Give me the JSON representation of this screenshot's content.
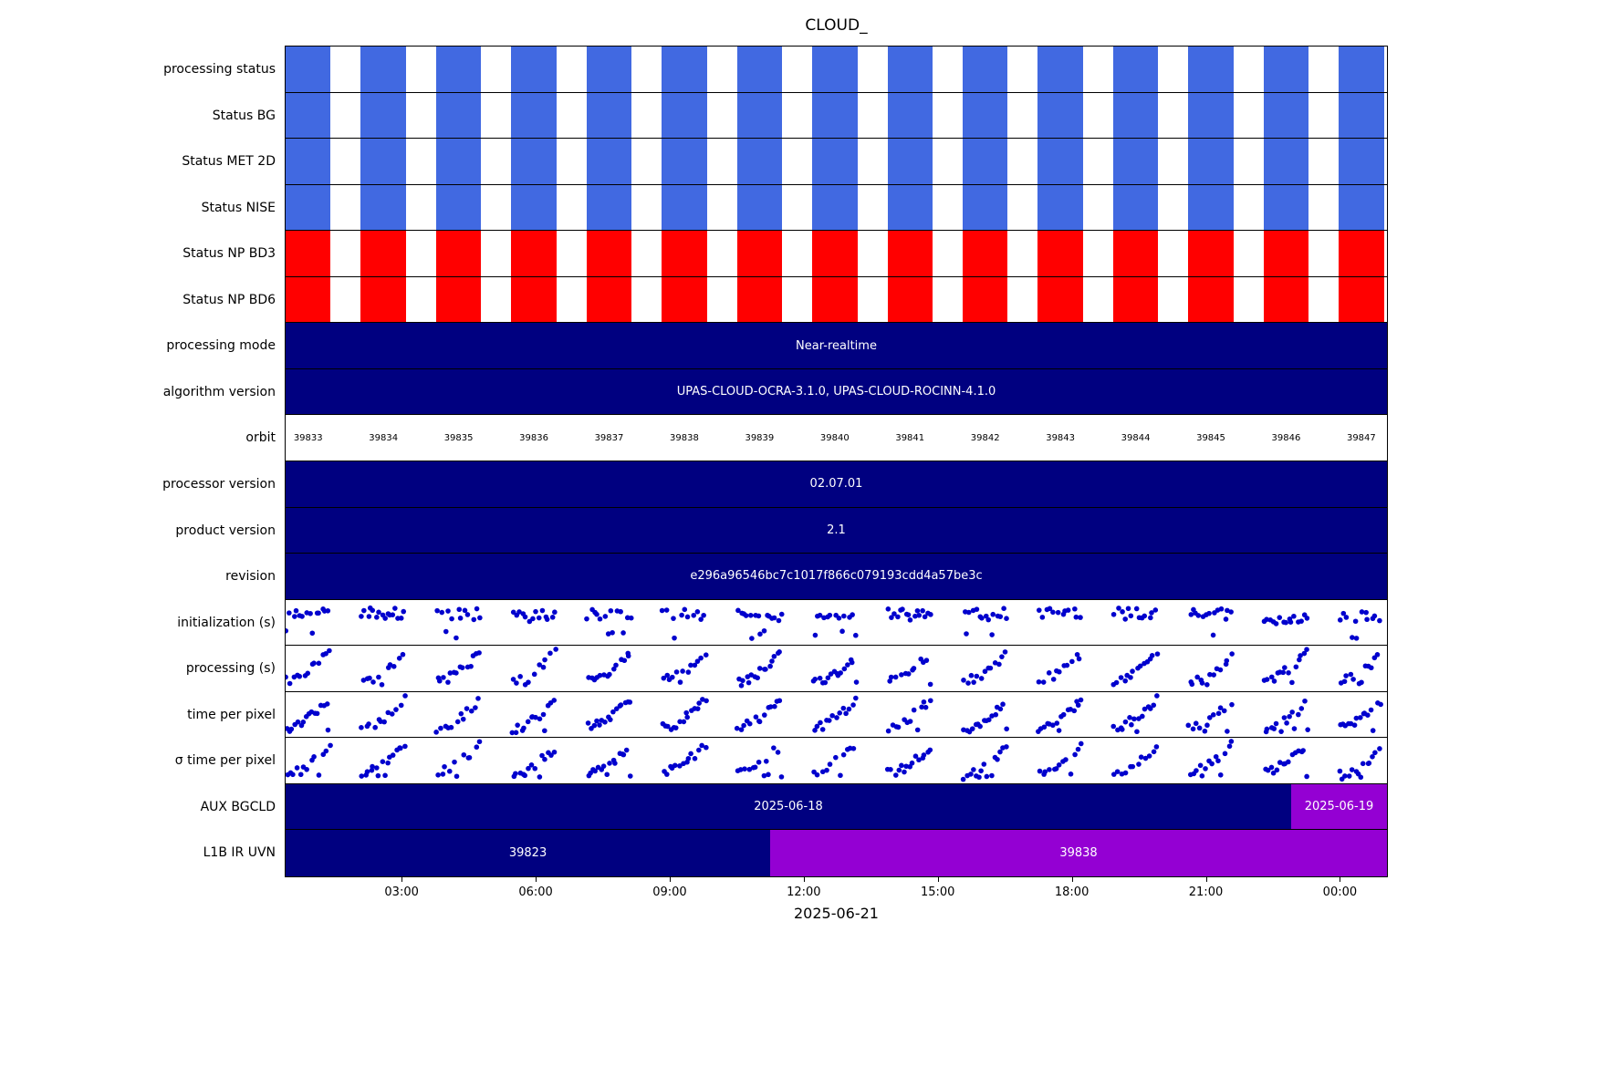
{
  "chart_data": {
    "type": "timeline",
    "title": "CLOUD_",
    "xlabel": "2025-06-21",
    "legend_position": "none",
    "grid": false,
    "colors": {
      "blue_stripe": "#4169e1",
      "red_stripe": "#ff0000",
      "navy": "#000080",
      "purple": "#9400d3",
      "dot": "#0000cd"
    },
    "xticks": [
      {
        "label": "03:00",
        "pos": 10.6
      },
      {
        "label": "06:00",
        "pos": 22.75
      },
      {
        "label": "09:00",
        "pos": 34.9
      },
      {
        "label": "12:00",
        "pos": 47.05
      },
      {
        "label": "15:00",
        "pos": 59.2
      },
      {
        "label": "18:00",
        "pos": 71.35
      },
      {
        "label": "21:00",
        "pos": 83.5
      },
      {
        "label": "00:00",
        "pos": 95.65
      }
    ],
    "orbits": [
      "39833",
      "39834",
      "39835",
      "39836",
      "39837",
      "39838",
      "39839",
      "39840",
      "39841",
      "39842",
      "39843",
      "39844",
      "39845",
      "39846",
      "39847"
    ],
    "stripes": {
      "count": 15,
      "period_pct": 6.83,
      "duty": 0.6
    },
    "rows": [
      {
        "label": "processing status",
        "type": "stripes",
        "color_key": "blue_stripe"
      },
      {
        "label": "Status BG",
        "type": "stripes",
        "color_key": "blue_stripe"
      },
      {
        "label": "Status MET 2D",
        "type": "stripes",
        "color_key": "blue_stripe"
      },
      {
        "label": "Status NISE",
        "type": "stripes",
        "color_key": "blue_stripe"
      },
      {
        "label": "Status NP BD3",
        "type": "stripes",
        "color_key": "red_stripe"
      },
      {
        "label": "Status NP BD6",
        "type": "stripes",
        "color_key": "red_stripe"
      },
      {
        "label": "processing mode",
        "type": "bar",
        "segments": [
          {
            "text": "Near-realtime",
            "color_key": "navy",
            "start": 0,
            "end": 100
          }
        ]
      },
      {
        "label": "algorithm version",
        "type": "bar",
        "segments": [
          {
            "text": "UPAS-CLOUD-OCRA-3.1.0, UPAS-CLOUD-ROCINN-4.1.0",
            "color_key": "navy",
            "start": 0,
            "end": 100
          }
        ]
      },
      {
        "label": "orbit",
        "type": "orbit-labels"
      },
      {
        "label": "processor version",
        "type": "bar",
        "segments": [
          {
            "text": "02.07.01",
            "color_key": "navy",
            "start": 0,
            "end": 100
          }
        ]
      },
      {
        "label": "product version",
        "type": "bar",
        "segments": [
          {
            "text": "2.1",
            "color_key": "navy",
            "start": 0,
            "end": 100
          }
        ]
      },
      {
        "label": "revision",
        "type": "bar",
        "segments": [
          {
            "text": "e296a96546bc7c1017f866c079193cdd4a57be3c",
            "color_key": "navy",
            "start": 0,
            "end": 100
          }
        ]
      },
      {
        "label": "initialization (s)",
        "type": "scatter",
        "pattern": "band",
        "seed": 13,
        "points_per_orbit_min": 11,
        "points_per_orbit_max": 16,
        "note": "per-orbit clusters of timing samples, no y-axis scale shown"
      },
      {
        "label": "processing (s)",
        "type": "scatter",
        "pattern": "ramp",
        "seed": 27,
        "points_per_orbit_min": 11,
        "points_per_orbit_max": 16,
        "note": "values rise within each orbit cluster"
      },
      {
        "label": "time per pixel",
        "type": "scatter",
        "pattern": "ramp",
        "seed": 41,
        "points_per_orbit_min": 11,
        "points_per_orbit_max": 16,
        "note": "values rise within each orbit cluster"
      },
      {
        "label": "σ time per pixel",
        "type": "scatter",
        "pattern": "ramp",
        "seed": 55,
        "points_per_orbit_min": 11,
        "points_per_orbit_max": 16,
        "note": "values rise within each orbit cluster"
      },
      {
        "label": "AUX BGCLD",
        "type": "bar",
        "segments": [
          {
            "text": "2025-06-18",
            "color_key": "navy",
            "start": 0,
            "end": 91.3
          },
          {
            "text": "2025-06-19",
            "color_key": "purple",
            "start": 91.3,
            "end": 100
          }
        ]
      },
      {
        "label": "L1B IR UVN",
        "type": "bar",
        "segments": [
          {
            "text": "39823",
            "color_key": "navy",
            "start": 0,
            "end": 44
          },
          {
            "text": "39838",
            "color_key": "purple",
            "start": 44,
            "end": 100
          }
        ]
      }
    ]
  }
}
